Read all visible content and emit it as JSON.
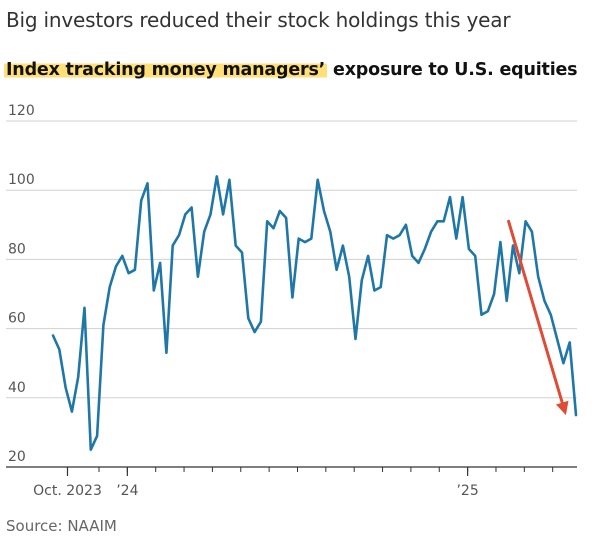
{
  "headline": "Big investors reduced their stock holdings this year",
  "subtitle_highlight": "Index tracking money managers’",
  "subtitle_rest": " exposure to U.S. equities",
  "source": "Source: NAAIM",
  "chart_data": {
    "type": "line",
    "title": "Index tracking money managers’ exposure to U.S. equities",
    "ylim": [
      20,
      120
    ],
    "yticks": [
      20,
      40,
      60,
      80,
      100,
      120
    ],
    "ytick_labels": [
      "20",
      "40",
      "60",
      "80",
      "100",
      "120"
    ],
    "xtick_labels": [
      "Oct. 2023",
      "’24",
      "’25"
    ],
    "grid": true,
    "colors": {
      "line": "#1f77a8",
      "arrow": "#e04b35",
      "grid": "#d0d0d0",
      "axis": "#333333"
    },
    "series": [
      {
        "values": [
          58,
          54,
          43,
          36,
          46,
          66,
          25,
          29,
          61,
          72,
          78,
          81,
          76,
          77,
          97,
          102,
          71,
          79,
          53,
          84,
          87,
          93,
          95,
          75,
          88,
          93,
          104,
          93,
          103,
          84,
          82,
          63,
          59,
          62,
          91,
          89,
          94,
          92,
          69,
          86,
          85,
          86,
          103,
          94,
          88,
          77,
          84,
          75,
          57,
          74,
          81,
          71,
          72,
          87,
          86,
          87,
          90,
          81,
          79,
          83,
          88,
          91,
          91,
          98,
          86,
          98,
          83,
          81,
          64,
          65,
          70,
          85,
          68,
          84,
          76,
          91,
          88,
          75,
          68,
          64,
          57,
          50,
          56,
          35
        ]
      }
    ],
    "annotation": {
      "type": "arrow",
      "from": [
        72.3,
        91
      ],
      "to": [
        81.4,
        35
      ]
    }
  }
}
